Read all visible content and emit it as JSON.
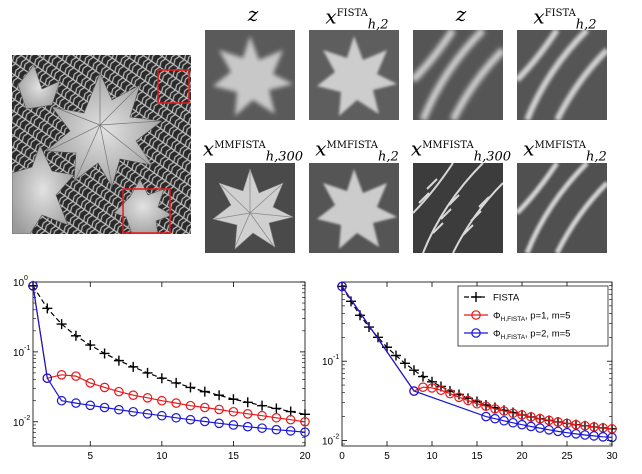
{
  "images": {
    "main": {
      "name": "leaves-photo"
    },
    "top_row": [
      {
        "base": "z",
        "sup": "",
        "sub": ""
      },
      {
        "base": "x",
        "sup": "FISTA",
        "sub": "h,2"
      },
      {
        "base": "z",
        "sup": "",
        "sub": ""
      },
      {
        "base": "x",
        "sup": "FISTA",
        "sub": "h,2"
      }
    ],
    "bottom_row": [
      {
        "base": "x",
        "sup": "MMFISTA",
        "sub": "h,300"
      },
      {
        "base": "x",
        "sup": "MMFISTA",
        "sub": "h,2"
      },
      {
        "base": "x",
        "sup": "MMFISTA",
        "sub": "h,300"
      },
      {
        "base": "x",
        "sup": "MMFISTA",
        "sub": "h,2"
      }
    ]
  },
  "colors": {
    "fista": "#000000",
    "p1": "#e8191b",
    "p2": "#1a17d6",
    "crop_box": "#e8191b"
  },
  "chart_data": [
    {
      "type": "line",
      "yscale": "log",
      "xlim": [
        1,
        20
      ],
      "ylim": [
        0.0045,
        1
      ],
      "xticks": [
        5,
        10,
        15,
        20
      ],
      "yticks": [
        {
          "value": 1,
          "label": "10",
          "exp": "0"
        },
        {
          "value": 0.1,
          "label": "10",
          "exp": "-1"
        },
        {
          "value": 0.01,
          "label": "10",
          "exp": "-2"
        }
      ],
      "series": [
        {
          "key": "fista",
          "style": "dashed",
          "marker": "plus",
          "x": [
            1,
            2,
            3,
            4,
            5,
            6,
            7,
            8,
            9,
            10,
            11,
            12,
            13,
            14,
            15,
            16,
            17,
            18,
            19,
            20
          ],
          "values": [
            0.88,
            0.42,
            0.25,
            0.17,
            0.125,
            0.095,
            0.075,
            0.061,
            0.05,
            0.042,
            0.036,
            0.031,
            0.027,
            0.024,
            0.021,
            0.019,
            0.017,
            0.0155,
            0.014,
            0.0128
          ]
        },
        {
          "key": "p1",
          "style": "solid",
          "marker": "circle",
          "x": [
            1,
            2,
            3,
            4,
            5,
            6,
            7,
            8,
            9,
            10,
            11,
            12,
            13,
            14,
            15,
            16,
            17,
            18,
            19,
            20
          ],
          "values": [
            0.88,
            0.042,
            0.047,
            0.045,
            0.036,
            0.031,
            0.027,
            0.024,
            0.022,
            0.02,
            0.0185,
            0.017,
            0.016,
            0.015,
            0.0139,
            0.013,
            0.0122,
            0.0114,
            0.0107,
            0.01
          ]
        },
        {
          "key": "p2",
          "style": "solid",
          "marker": "circle",
          "x": [
            1,
            2,
            3,
            4,
            5,
            6,
            7,
            8,
            9,
            10,
            11,
            12,
            13,
            14,
            15,
            16,
            17,
            18,
            19,
            20
          ],
          "values": [
            0.88,
            0.042,
            0.02,
            0.0185,
            0.0172,
            0.016,
            0.0149,
            0.0139,
            0.013,
            0.0122,
            0.0114,
            0.0107,
            0.0101,
            0.0095,
            0.009,
            0.0085,
            0.0081,
            0.0077,
            0.0074,
            0.0071
          ]
        }
      ]
    },
    {
      "type": "line",
      "yscale": "log",
      "xlim": [
        0,
        30
      ],
      "ylim": [
        0.0085,
        1
      ],
      "xticks": [
        0,
        5,
        10,
        15,
        20,
        25,
        30
      ],
      "yticks": [
        {
          "value": 0.1,
          "label": "10",
          "exp": "-1"
        },
        {
          "value": 0.01,
          "label": "10",
          "exp": "-2"
        }
      ],
      "legend": {
        "position": "top-right",
        "entries": [
          {
            "key": "fista",
            "label": "FISTA"
          },
          {
            "key": "p1",
            "label": "Φ",
            "sub": "H,FISTA",
            "suffix": ", p=1, m=5"
          },
          {
            "key": "p2",
            "label": "Φ",
            "sub": "H,FISTA",
            "suffix": ", p=2, m=5"
          }
        ]
      },
      "series": [
        {
          "key": "fista",
          "style": "dashed",
          "marker": "plus",
          "x": [
            0,
            1,
            2,
            3,
            4,
            5,
            6,
            7,
            8,
            9,
            10,
            11,
            12,
            13,
            14,
            15,
            16,
            17,
            18,
            19,
            20,
            21,
            22,
            23,
            24,
            25,
            26,
            27,
            28,
            29,
            30
          ],
          "values": [
            0.88,
            0.57,
            0.38,
            0.27,
            0.2,
            0.15,
            0.118,
            0.094,
            0.077,
            0.064,
            0.055,
            0.048,
            0.042,
            0.038,
            0.034,
            0.031,
            0.028,
            0.026,
            0.024,
            0.0225,
            0.021,
            0.0198,
            0.0188,
            0.0179,
            0.0171,
            0.0164,
            0.0158,
            0.0153,
            0.0148,
            0.0144,
            0.014
          ]
        },
        {
          "key": "p1",
          "style": "solid",
          "marker": "circle",
          "x": [
            0,
            8,
            9,
            10,
            11,
            12,
            13,
            14,
            15,
            16,
            17,
            18,
            19,
            20,
            21,
            22,
            23,
            24,
            25,
            26,
            27,
            28,
            29,
            30
          ],
          "values": [
            0.88,
            0.042,
            0.047,
            0.046,
            0.043,
            0.039,
            0.035,
            0.032,
            0.029,
            0.027,
            0.025,
            0.0235,
            0.022,
            0.021,
            0.0198,
            0.0188,
            0.0179,
            0.0171,
            0.0164,
            0.0158,
            0.0153,
            0.0148,
            0.0144,
            0.014
          ]
        },
        {
          "key": "p2",
          "style": "solid",
          "marker": "circle",
          "x": [
            0,
            8,
            16,
            17,
            18,
            19,
            20,
            21,
            22,
            23,
            24,
            25,
            26,
            27,
            28,
            29,
            30
          ],
          "values": [
            0.88,
            0.042,
            0.02,
            0.0188,
            0.0177,
            0.0167,
            0.0158,
            0.015,
            0.0143,
            0.0136,
            0.013,
            0.0125,
            0.0121,
            0.0117,
            0.0114,
            0.0111,
            0.0109
          ]
        }
      ]
    }
  ]
}
